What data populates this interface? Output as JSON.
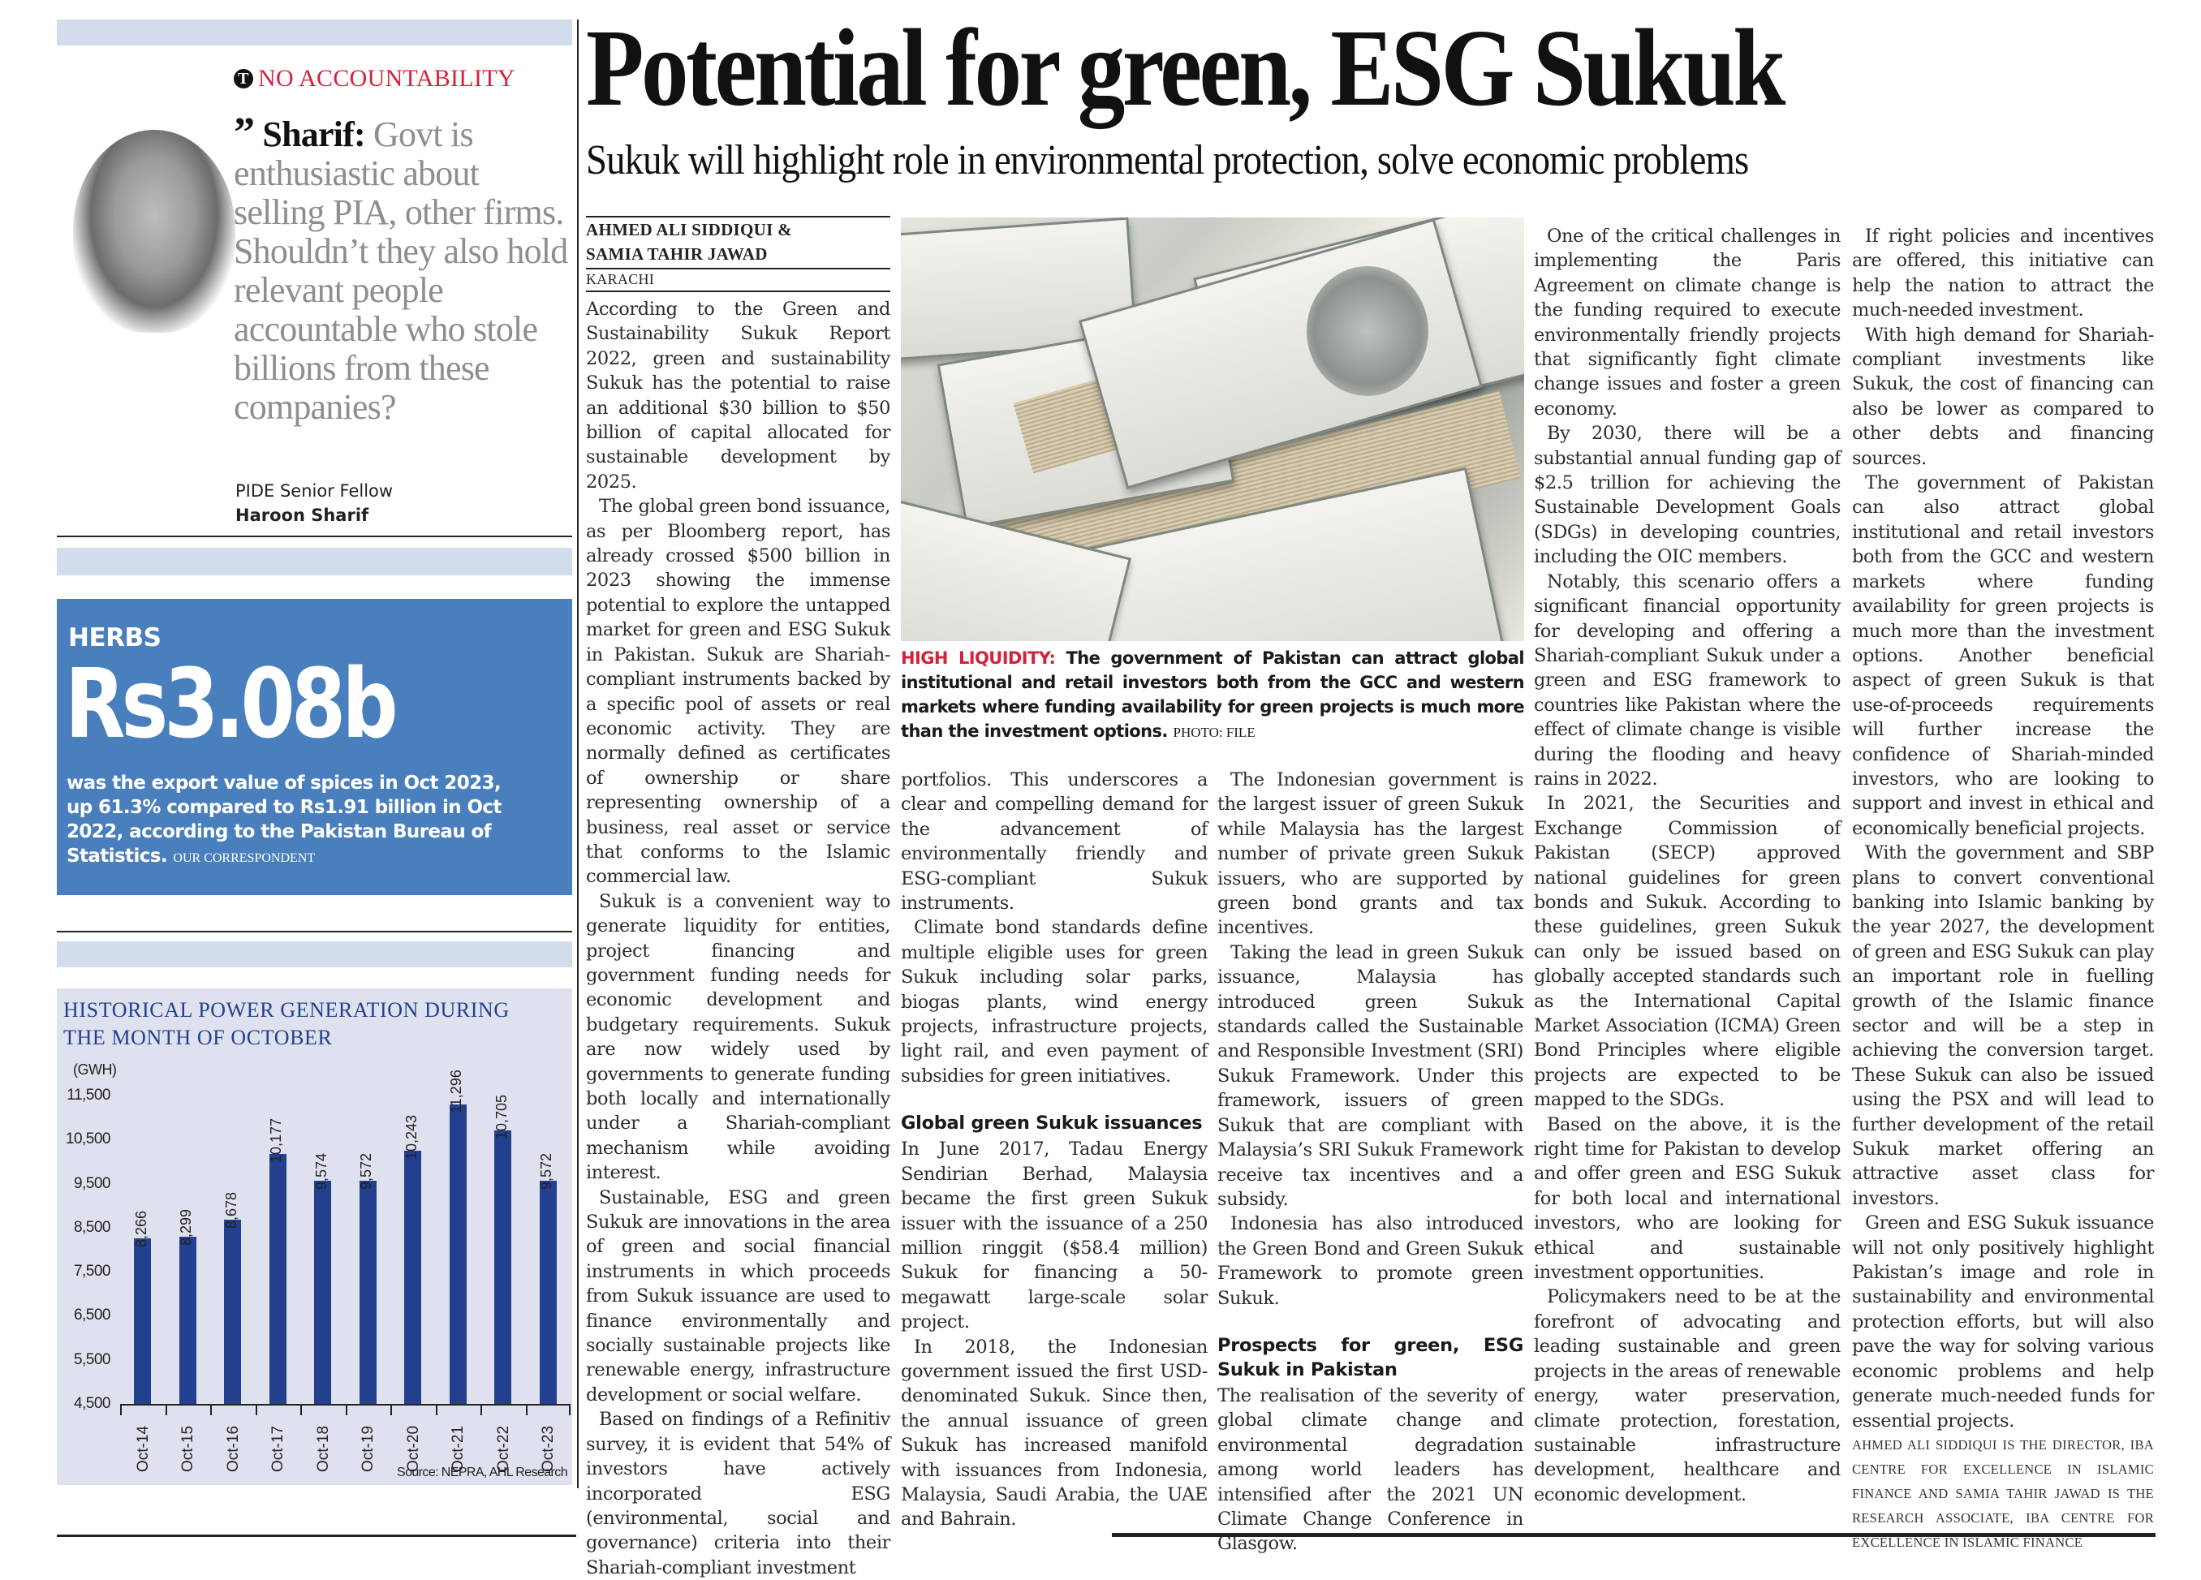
{
  "sidebar": {
    "quote": {
      "kicker": "NO ACCOUNTABILITY",
      "kicker_icon": "T",
      "speaker": "Sharif:",
      "text": "Govt is enthusiastic about selling PIA, other firms. Shouldn’t they also hold relevant people accountable who stole billions from these companies?",
      "title": "PIDE Senior Fellow",
      "name": "Haroon Sharif"
    },
    "herbs": {
      "label": "HERBS",
      "figure": "Rs3.08b",
      "text": "was the export value of spices in Oct 2023, up 61.3% compared to Rs1.91 billion in Oct 2022, according to the Pakistan Bureau of Statistics.",
      "credit": "OUR CORRESPONDENT"
    },
    "chart": {
      "title": "HISTORICAL POWER GENERATION DURING THE MONTH OF OCTOBER",
      "unit": "(GWH)",
      "source": "Source: NEPRA, AHL Research"
    }
  },
  "chart_data": {
    "type": "bar",
    "title": "HISTORICAL POWER GENERATION DURING THE MONTH OF OCTOBER",
    "ylabel": "(GWH)",
    "xlabel": "",
    "categories": [
      "Oct-14",
      "Oct-15",
      "Oct-16",
      "Oct-17",
      "Oct-18",
      "Oct-19",
      "Oct-20",
      "Oct-21",
      "Oct-22",
      "Oct-23"
    ],
    "values": [
      8266,
      8299,
      8678,
      10177,
      9574,
      9572,
      10243,
      11296,
      10705,
      9572
    ],
    "value_labels": [
      "8,266",
      "8,299",
      "8,678",
      "10,177",
      "9,574",
      "9,572",
      "10,243",
      "11,296",
      "10,705",
      "9,572"
    ],
    "yticks": [
      "11,500",
      "10,500",
      "9,500",
      "8,500",
      "7,500",
      "6,500",
      "5,500",
      "4,500"
    ],
    "ylim": [
      4500,
      11500
    ],
    "grid": false,
    "bar_color": "#23408e",
    "source": "Source: NEPRA, AHL Research"
  },
  "article": {
    "headline": "Potential for green, ESG Sukuk",
    "subtitle": "Sukuk will highlight role in environmental protection, solve economic problems",
    "byline_1": "AHMED ALI SIDDIQUI &",
    "byline_2": "SAMIA TAHIR JAWAD",
    "dateline": "KARACHI",
    "photo_alt": "Stacks of US 100 dollar bills",
    "caption_lead": "HIGH LIQUIDITY:",
    "caption_text": "The government of Pakistan can attract global institutional and retail investors both from the GCC and western markets where funding availability for green projects is much more than the investment options.",
    "caption_credit": "PHOTO: FILE",
    "col1": [
      "According to the Green and Sustainability Sukuk Report 2022, green and sustainability Sukuk has the potential to raise an additional $30 billion to $50 billion of capital allocated for sustainable development by 2025.",
      "The global green bond issuance, as per Bloomberg report, has already crossed $500 billion in 2023 showing the immense potential to explore the untapped market for green and ESG Sukuk in Pakistan. Sukuk are Shariah-compliant instruments backed by a specific pool of assets or real economic activity. They are normally defined as certificates of ownership or share representing ownership of a business, real asset or service that conforms to the Islamic commercial law.",
      "Sukuk is a convenient way to generate liquidity for entities, project financing and government funding needs for economic development and budgetary requirements. Sukuk are now widely used by governments to generate funding both locally and internationally under a Shariah-compliant mechanism while avoiding interest.",
      "Sustainable, ESG and green Sukuk are innovations in the area of green and social financial instruments in which proceeds from Sukuk issuance are used to finance environmentally and socially sustainable projects like renewable energy, infrastructure development or social welfare.",
      "Based on findings of a Refinitiv survey, it is evident that 54% of investors have actively incorporated ESG (environmental, social and governance) criteria into their Shariah-compliant investment"
    ],
    "col2": [
      "portfolios. This underscores a clear and compelling demand for the advancement of environmentally friendly and ESG-compliant Sukuk instruments.",
      "Climate bond standards define multiple eligible uses for green Sukuk including solar parks, biogas plants, wind energy projects, infrastructure projects, light rail, and even payment of subsidies for green initiatives."
    ],
    "col2_subhead": "Global green Sukuk issuances",
    "col2_after": [
      "In June 2017, Tadau Energy Sendirian Berhad, Malaysia became the first green Sukuk issuer with the issuance of a 250 million ringgit ($58.4 million) Sukuk for financing a 50-megawatt large-scale solar project.",
      "In 2018, the Indonesian government issued the first USD-denominated Sukuk. Since then, the annual issuance of green Sukuk has increased manifold with issuances from Indonesia, Malaysia, Saudi Arabia, the UAE and Bahrain."
    ],
    "col3": [
      "The Indonesian government is the largest issuer of green Sukuk while Malaysia has the largest number of private green Sukuk issuers, who are supported by green bond grants and tax incentives.",
      "Taking the lead in green Sukuk issuance, Malaysia has introduced green Sukuk standards called the Sustainable and Responsible Investment (SRI) Sukuk Framework. Under this framework, issuers of green Sukuk that are compliant with Malaysia’s SRI Sukuk Framework receive tax incentives and a subsidy.",
      "Indonesia has also introduced the Green Bond and Green Sukuk Framework to promote green Sukuk."
    ],
    "col3_subhead": "Prospects for green, ESG Sukuk in Pakistan",
    "col3_after": [
      "The realisation of the severity of global climate change and environmental degradation among world leaders has intensified after the 2021 UN Climate Change Conference in Glasgow."
    ],
    "col4": [
      "One of the critical challenges in implementing the Paris Agreement on climate change is the funding required to execute environmentally friendly projects that significantly fight climate change issues and foster a green economy.",
      "By 2030, there will be a substantial annual funding gap of $2.5 trillion for achieving the Sustainable Development Goals (SDGs) in developing countries, including the OIC members.",
      "Notably, this scenario offers a significant financial opportunity for developing and offering a Shariah-compliant Sukuk under a green and ESG framework to countries like Pakistan where the effect of climate change is visible during the flooding and heavy rains in 2022.",
      "In 2021, the Securities and Exchange Commission of Pakistan (SECP) approved national guidelines for green bonds and Sukuk. According to these guidelines, green Sukuk can only be issued based on globally accepted standards such as the International Capital Market Association (ICMA) Green Bond Principles where eligible projects are expected to be mapped to the SDGs.",
      "Based on the above, it is the right time for Pakistan to develop and offer green and ESG Sukuk for both local and international investors, who are looking for ethical and sustainable investment opportunities.",
      "Policymakers need to be at the forefront of advocating and leading sustainable and green projects in the areas of renewable energy, water preservation, climate protection, forestation, sustainable infrastructure development, healthcare and economic development."
    ],
    "col5": [
      "If right policies and incentives are offered, this initiative can help the nation to attract the much-needed investment.",
      "With high demand for Shariah-compliant investments like Sukuk, the cost of financing can also be lower as compared to other debts and financing sources.",
      "The government of Pakistan can also attract global institutional and retail investors both from the GCC and western markets where funding availability for green projects is much more than the investment options. Another beneficial aspect of green Sukuk is that use-of-proceeds requirements will further increase the confidence of Shariah-minded investors, who are looking to support and invest in ethical and economically beneficial projects.",
      "With the government and SBP plans to convert conventional banking into Islamic banking by the year 2027, the development of green and ESG Sukuk can play an important role in fuelling growth of the Islamic finance sector and will be a step in achieving the conversion target. These Sukuk can also be issued using the PSX and will lead to further development of the retail Sukuk market offering an attractive asset class for investors.",
      "Green and ESG Sukuk issuance will not only positively highlight Pakistan’s image and role in sustainability and environmental protection efforts, but will also pave the way for solving various economic problems and help generate much-needed funds for essential projects."
    ],
    "author_bio": "AHMED ALI SIDDIQUI IS THE DIRECTOR, IBA CENTRE FOR EXCELLENCE IN ISLAMIC FINANCE AND SAMIA TAHIR JAWAD IS THE RESEARCH ASSOCIATE, IBA CENTRE FOR EXCELLENCE IN ISLAMIC FINANCE"
  },
  "colors": {
    "accent_red": "#d2233c",
    "herbs_blue": "#4a7fbe",
    "chart_bar": "#23408e",
    "chart_bg": "#dfe1ef",
    "band_blue": "#d3dcec"
  }
}
